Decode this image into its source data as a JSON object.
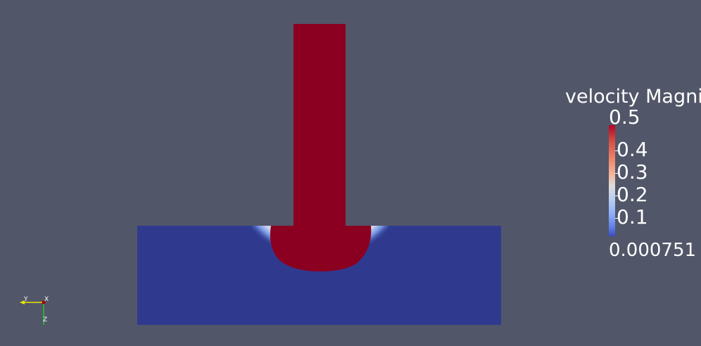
{
  "scalar_bar": {
    "title": "velocity Magnitude",
    "max_label": "0.5",
    "min_label": "0.000751",
    "ticks": [
      "0.4",
      "0.3",
      "0.2",
      "0.1"
    ],
    "range": [
      0.000751,
      0.5
    ]
  },
  "orientation_axes": {
    "x_label": "X",
    "y_label": "Y",
    "z_label": "Z"
  },
  "colors": {
    "background": "#525669",
    "high_velocity": "#8b0020",
    "low_velocity": "#2f3a8f",
    "white_mid": "#dddcdc"
  },
  "field": {
    "jet_velocity": 0.5,
    "pool_velocity": 0.000751
  }
}
